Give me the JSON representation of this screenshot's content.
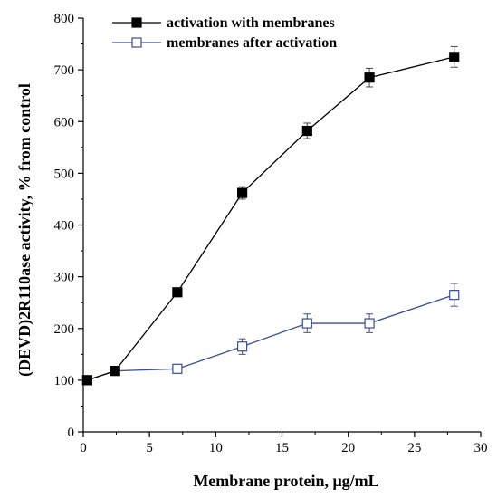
{
  "chart_data": {
    "type": "line",
    "xlabel": "Membrane protein, μg/mL",
    "ylabel": "(DEVD)2R110ase activity, % from control",
    "xlim": [
      0,
      30
    ],
    "ylim": [
      0,
      800
    ],
    "xticks": [
      0,
      5,
      10,
      15,
      20,
      25,
      30
    ],
    "yticks": [
      0,
      100,
      200,
      300,
      400,
      500,
      600,
      700,
      800
    ],
    "grid": false,
    "legend_position": "top-left",
    "series": [
      {
        "name": "activation with membranes",
        "marker": "filled-square",
        "color": "#000000",
        "points": [
          {
            "x": 0.3,
            "y": 100,
            "err": 0
          },
          {
            "x": 2.4,
            "y": 118,
            "err": 0
          },
          {
            "x": 7.1,
            "y": 270,
            "err": 0
          },
          {
            "x": 12.0,
            "y": 462,
            "err": 12
          },
          {
            "x": 16.9,
            "y": 582,
            "err": 15
          },
          {
            "x": 21.6,
            "y": 685,
            "err": 18
          },
          {
            "x": 28.0,
            "y": 725,
            "err": 20
          }
        ]
      },
      {
        "name": "membranes after activation",
        "marker": "open-square",
        "color": "#3b4e8f",
        "points": [
          {
            "x": 0.3,
            "y": 100,
            "err": 0
          },
          {
            "x": 2.4,
            "y": 118,
            "err": 0
          },
          {
            "x": 7.1,
            "y": 122,
            "err": 0
          },
          {
            "x": 12.0,
            "y": 165,
            "err": 15
          },
          {
            "x": 16.9,
            "y": 210,
            "err": 18
          },
          {
            "x": 21.6,
            "y": 210,
            "err": 18
          },
          {
            "x": 28.0,
            "y": 265,
            "err": 22
          }
        ]
      }
    ]
  }
}
